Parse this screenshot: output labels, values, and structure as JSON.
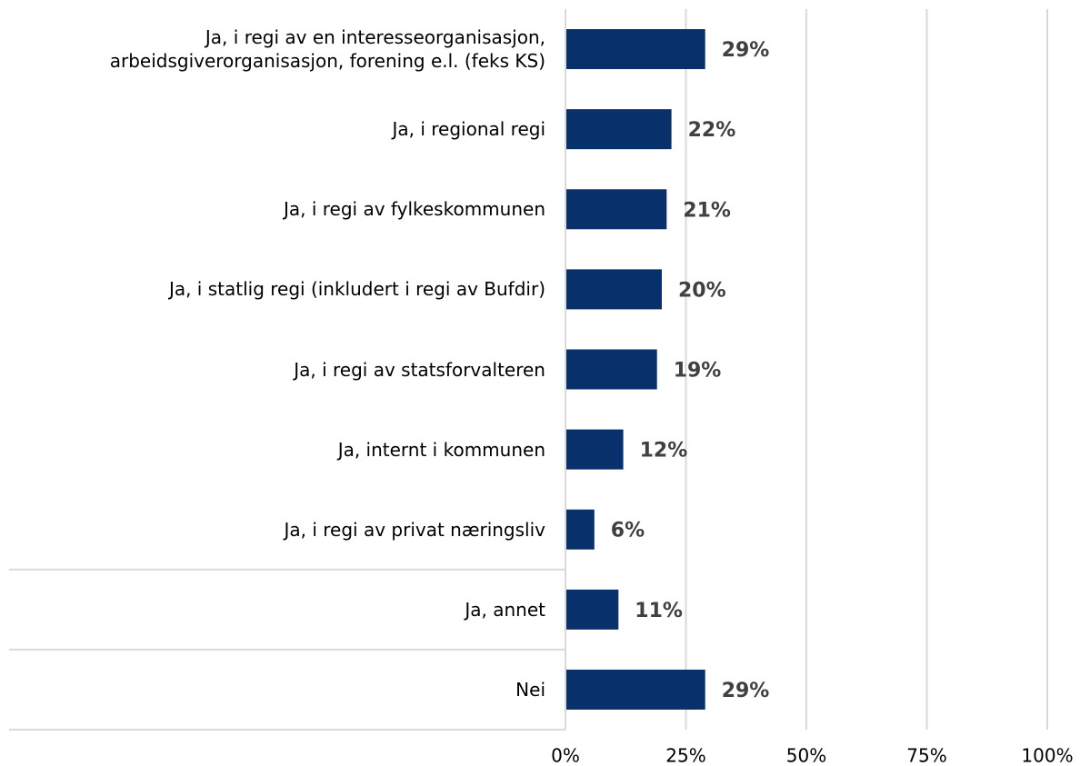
{
  "chart_data": {
    "type": "bar",
    "orientation": "horizontal",
    "categories": [
      "Ja, i regi av en interesseorganisasjon, arbeidsgiverorganisasjon, forening e.l. (feks KS)",
      "Ja, i regional regi",
      "Ja, i regi av fylkeskommunen",
      "Ja, i statlig regi (inkludert i regi av Bufdir)",
      "Ja, i regi av statsforvalteren",
      "Ja, internt i kommunen",
      "Ja, i regi av privat næringsliv",
      "Ja, annet",
      "Nei"
    ],
    "values": [
      29,
      22,
      21,
      20,
      19,
      12,
      6,
      11,
      29
    ],
    "value_labels": [
      "29%",
      "22%",
      "21%",
      "20%",
      "19%",
      "12%",
      "6%",
      "11%",
      "29%"
    ],
    "color": "#08306b",
    "xlim": [
      0,
      100
    ],
    "xticks": [
      {
        "value": 0,
        "label": "0%"
      },
      {
        "value": 25,
        "label": "25%"
      },
      {
        "value": 50,
        "label": "50%"
      },
      {
        "value": 75,
        "label": "75%"
      },
      {
        "value": 100,
        "label": "100%"
      }
    ],
    "grid": true
  }
}
